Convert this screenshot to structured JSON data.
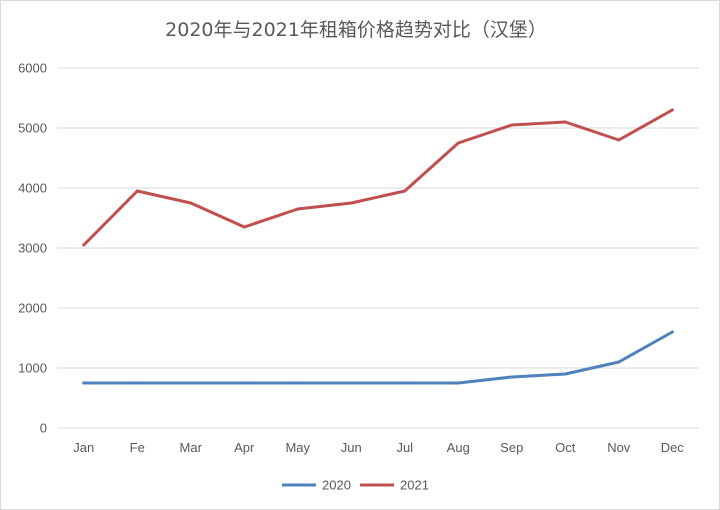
{
  "chart_data": {
    "type": "line",
    "title": "2020年与2021年租箱价格趋势对比（汉堡）",
    "xlabel": "",
    "ylabel": "",
    "categories": [
      "Jan",
      "Fe",
      "Mar",
      "Apr",
      "May",
      "Jun",
      "Jul",
      "Aug",
      "Sep",
      "Oct",
      "Nov",
      "Dec"
    ],
    "ylim": [
      0,
      6000
    ],
    "yticks": [
      0,
      1000,
      2000,
      3000,
      4000,
      5000,
      6000
    ],
    "grid": true,
    "legend": "bottom",
    "series": [
      {
        "name": "2020",
        "color": "#4f81bd",
        "values": [
          750,
          750,
          750,
          750,
          750,
          750,
          750,
          750,
          850,
          900,
          1100,
          1600
        ]
      },
      {
        "name": "2021",
        "color": "#c0504d",
        "values": [
          3050,
          3950,
          3750,
          3350,
          3650,
          3750,
          3950,
          4750,
          5050,
          5100,
          4800,
          5300
        ]
      }
    ]
  }
}
